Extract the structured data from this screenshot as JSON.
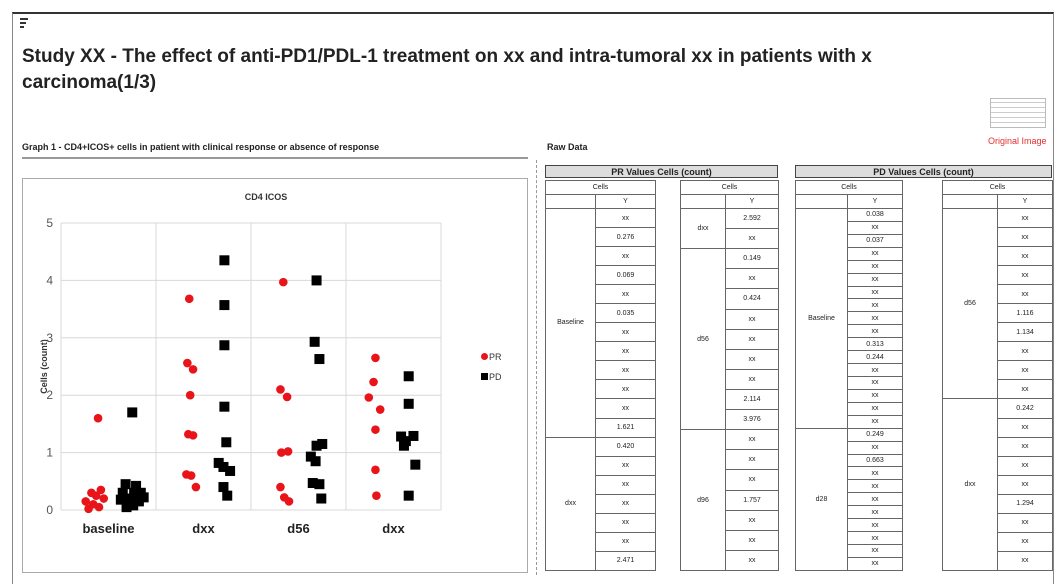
{
  "header": {
    "title": "Study XX - The effect of anti-PD1/PDL-1 treatment on xx and intra-tumoral xx in patients with x carcinoma(1/3)",
    "original_image": "Original Image"
  },
  "graph": {
    "heading": "Graph 1 - CD4+ICOS+ cells in patient with clinical response or absence of response"
  },
  "chart_data": {
    "type": "scatter",
    "title": "CD4 ICOS",
    "y_label": "Cells (count)",
    "xlim": [
      0.5,
      4.5
    ],
    "xticks": [
      {
        "value": 1,
        "label": "baseline"
      },
      {
        "value": 2,
        "label": "dxx"
      },
      {
        "value": 3,
        "label": "d56"
      },
      {
        "value": 4,
        "label": "dxx"
      }
    ],
    "ylim": [
      0,
      5
    ],
    "yticks": [
      0,
      1,
      2,
      3,
      4,
      5
    ],
    "grid": true,
    "legend": "right",
    "series": [
      {
        "name": "PR",
        "color": "#e8141a",
        "marker": "circle",
        "x": [
          0.89,
          0.82,
          0.87,
          0.92,
          0.76,
          0.84,
          0.9,
          0.95,
          0.79,
          1.85,
          1.83,
          1.89,
          1.86,
          1.84,
          1.89,
          1.82,
          1.87,
          1.92,
          2.84,
          2.81,
          2.88,
          2.82,
          2.89,
          2.81,
          2.85,
          2.9,
          3.81,
          3.79,
          3.74,
          3.86,
          3.81,
          3.81,
          3.82
        ],
        "values": [
          1.6,
          0.3,
          0.25,
          0.35,
          0.15,
          0.1,
          0.05,
          0.2,
          0.02,
          3.68,
          2.56,
          2.45,
          2.0,
          1.32,
          1.3,
          0.62,
          0.6,
          0.4,
          3.97,
          2.1,
          1.97,
          1.0,
          1.02,
          0.4,
          0.22,
          0.15,
          2.65,
          2.23,
          1.96,
          1.75,
          1.4,
          0.7,
          0.25
        ]
      },
      {
        "name": "PD",
        "color": "#000000",
        "marker": "square",
        "x": [
          1.25,
          1.18,
          1.29,
          1.15,
          1.34,
          1.22,
          1.32,
          1.26,
          1.19,
          1.37,
          1.13,
          1.27,
          2.22,
          2.22,
          2.22,
          2.22,
          2.24,
          2.16,
          2.21,
          2.28,
          2.21,
          2.25,
          3.19,
          3.17,
          3.22,
          3.25,
          3.19,
          3.13,
          3.18,
          3.15,
          3.22,
          3.24,
          4.16,
          4.16,
          4.08,
          4.21,
          4.13,
          4.11,
          4.23,
          4.16
        ],
        "values": [
          1.7,
          0.45,
          0.42,
          0.3,
          0.3,
          0.2,
          0.15,
          0.08,
          0.05,
          0.22,
          0.18,
          0.3,
          4.35,
          3.57,
          2.87,
          1.8,
          1.18,
          0.82,
          0.75,
          0.68,
          0.4,
          0.25,
          4.0,
          2.93,
          2.63,
          1.15,
          1.12,
          0.93,
          0.85,
          0.47,
          0.45,
          0.2,
          2.33,
          1.85,
          1.28,
          1.29,
          1.2,
          1.12,
          0.79,
          0.25
        ]
      }
    ]
  },
  "raw_data": {
    "heading": "Raw Data",
    "tables": [
      {
        "title": "PR Values Cells (count)",
        "parts": [
          {
            "cells_label": "Cells",
            "y_label": "Y",
            "groups": [
              {
                "label": "Baseline",
                "values": [
                  "xx",
                  "0.276",
                  "xx",
                  "0.069",
                  "xx",
                  "0.035",
                  "xx",
                  "xx",
                  "xx",
                  "xx",
                  "xx",
                  "1.621"
                ]
              },
              {
                "label": "dxx",
                "values": [
                  "0.420",
                  "xx",
                  "xx",
                  "xx",
                  "xx",
                  "xx",
                  "2.471"
                ]
              }
            ]
          },
          {
            "cells_label": "Cells",
            "y_label": "Y",
            "groups": [
              {
                "label": "dxx",
                "values": [
                  "2.592",
                  "xx"
                ]
              },
              {
                "label": "d56",
                "values": [
                  "0.149",
                  "xx",
                  "0.424",
                  "xx",
                  "xx",
                  "xx",
                  "xx",
                  "2.114",
                  "3.976"
                ]
              },
              {
                "label": "d96",
                "values": [
                  "xx",
                  "xx",
                  "xx",
                  "1.757",
                  "xx",
                  "xx",
                  "xx"
                ]
              }
            ]
          }
        ]
      },
      {
        "title": "PD Values Cells (count)",
        "parts": [
          {
            "cells_label": "Cells",
            "y_label": "Y",
            "groups": [
              {
                "label": "Baseline",
                "values": [
                  "0.038",
                  "xx",
                  "0.037",
                  "xx",
                  "xx",
                  "xx",
                  "xx",
                  "xx",
                  "xx",
                  "xx",
                  "0.313",
                  "0.244",
                  "xx",
                  "xx",
                  "xx",
                  "xx",
                  "xx"
                ]
              },
              {
                "label": "d28",
                "values": [
                  "0.249",
                  "xx",
                  "0.663",
                  "xx",
                  "xx",
                  "xx",
                  "xx",
                  "xx",
                  "xx",
                  "xx",
                  "xx"
                ]
              }
            ]
          },
          {
            "cells_label": "Cells",
            "y_label": "Y",
            "groups": [
              {
                "label": "d56",
                "values": [
                  "xx",
                  "xx",
                  "xx",
                  "xx",
                  "xx",
                  "1.116",
                  "1.134",
                  "xx",
                  "xx",
                  "xx"
                ]
              },
              {
                "label": "dxx",
                "values": [
                  "0.242",
                  "xx",
                  "xx",
                  "xx",
                  "xx",
                  "1.294",
                  "xx",
                  "xx",
                  "xx"
                ]
              }
            ]
          }
        ]
      }
    ]
  }
}
